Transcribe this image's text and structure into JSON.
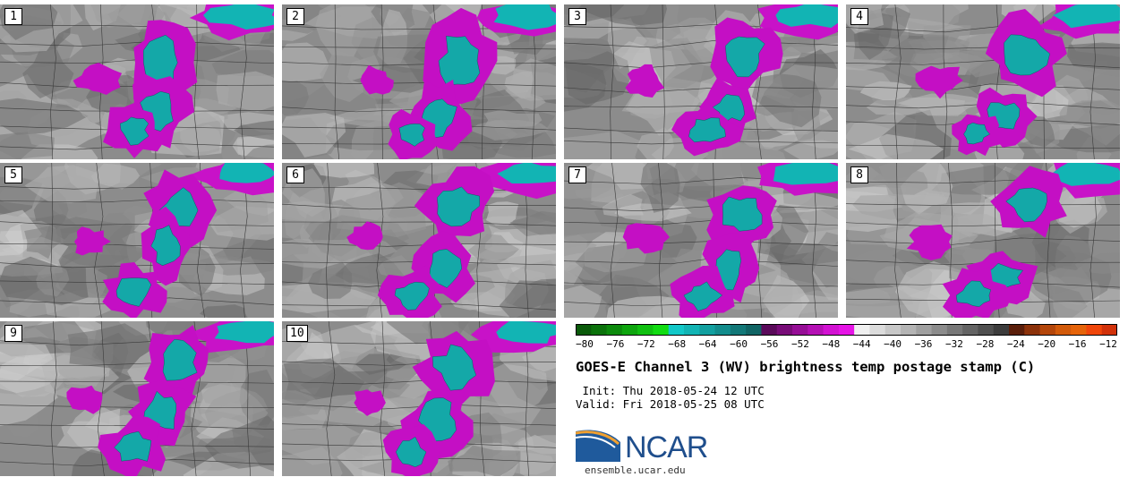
{
  "panels": [
    {
      "label": "1"
    },
    {
      "label": "2"
    },
    {
      "label": "3"
    },
    {
      "label": "4"
    },
    {
      "label": "5"
    },
    {
      "label": "6"
    },
    {
      "label": "7"
    },
    {
      "label": "8"
    },
    {
      "label": "9"
    },
    {
      "label": "10"
    }
  ],
  "colorbar": {
    "ticks": [
      "−80",
      "−76",
      "−72",
      "−68",
      "−64",
      "−60",
      "−56",
      "−52",
      "−48",
      "−44",
      "−40",
      "−36",
      "−32",
      "−28",
      "−24",
      "−20",
      "−16",
      "−12"
    ],
    "min": -80,
    "max": -10,
    "colors": [
      "#0a5a0a",
      "#0b720b",
      "#0c8a0c",
      "#0ea50e",
      "#10c010",
      "#12dc12",
      "#12c8c8",
      "#12b4b4",
      "#12a0a0",
      "#128c8c",
      "#127878",
      "#106464",
      "#5a0a5a",
      "#780c78",
      "#960e96",
      "#b410b4",
      "#d212d2",
      "#e614e6",
      "#f0f0f0",
      "#dcdcdc",
      "#c8c8c8",
      "#b4b4b4",
      "#a0a0a0",
      "#8c8c8c",
      "#787878",
      "#646464",
      "#505050",
      "#3c3c3c",
      "#5a1e0a",
      "#8c320a",
      "#b4460a",
      "#d25a0a",
      "#e6640a",
      "#f0460a",
      "#d2320a"
    ]
  },
  "title": "GOES-E Channel 3 (WV) brightness temp postage stamp (C)",
  "init": " Init: Thu 2018-05-24 12 UTC",
  "valid": "Valid: Fri 2018-05-25 08 UTC",
  "logo": {
    "text": "NCAR",
    "url": "ensemble.ucar.edu"
  }
}
